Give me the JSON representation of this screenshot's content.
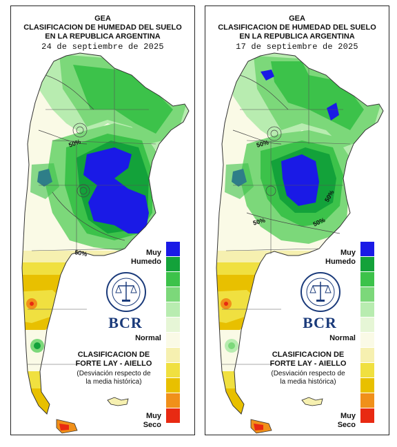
{
  "panels": [
    {
      "id": "left",
      "header_line1": "GEA",
      "header_line2": "CLASIFICACION DE HUMEDAD DEL SUELO",
      "header_line3": "EN LA REPUBLICA ARGENTINA",
      "date": "24 de septiembre de 2025",
      "isolines": [
        "50%",
        "50%"
      ]
    },
    {
      "id": "right",
      "header_line1": "GEA",
      "header_line2": "CLASIFICACION DE HUMEDAD DEL SUELO",
      "header_line3": "EN LA REPUBLICA ARGENTINA",
      "date": "17 de septiembre de 2025",
      "isolines": [
        "50%",
        "50%",
        "50%",
        "50%"
      ]
    }
  ],
  "legend": {
    "top_label_1": "Muy",
    "top_label_2": "Humedo",
    "mid_label": "Normal",
    "bottom_label_1": "Muy",
    "bottom_label_2": "Seco",
    "classes": [
      {
        "level": "muy-humedo",
        "color": "#1a1ae6"
      },
      {
        "level": "humedo-3",
        "color": "#13a23a"
      },
      {
        "level": "humedo-2",
        "color": "#3cc24a"
      },
      {
        "level": "humedo-1",
        "color": "#7cd87a"
      },
      {
        "level": "levemente-humedo",
        "color": "#b8ecb0"
      },
      {
        "level": "normal-humedo",
        "color": "#e6f6d6"
      },
      {
        "level": "normal",
        "color": "#fafae6"
      },
      {
        "level": "normal-seco",
        "color": "#f6f0b0"
      },
      {
        "level": "seco-1",
        "color": "#f0e040"
      },
      {
        "level": "seco-2",
        "color": "#e8c000"
      },
      {
        "level": "seco-3",
        "color": "#f0901a"
      },
      {
        "level": "muy-seco",
        "color": "#e82a12"
      }
    ]
  },
  "classification": {
    "line1": "CLASIFICACION DE",
    "line2": "FORTE LAY - AIELLO",
    "desc1": "(Desviación respecto de",
    "desc2": "la media histórica)"
  },
  "logo": {
    "text": "BCR",
    "color": "#1a3a7a"
  }
}
